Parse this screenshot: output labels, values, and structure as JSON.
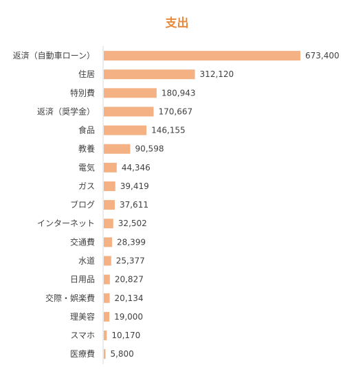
{
  "chart_data": {
    "type": "bar",
    "orientation": "horizontal",
    "title": "支出",
    "categories": [
      "返済（自動車ローン）",
      "住居",
      "特別費",
      "返済（奨学金）",
      "食品",
      "教養",
      "電気",
      "ガス",
      "ブログ",
      "インターネット",
      "交通費",
      "水道",
      "日用品",
      "交際・娯楽費",
      "理美容",
      "スマホ",
      "医療費"
    ],
    "values": [
      673400,
      312120,
      180943,
      170667,
      146155,
      90598,
      44346,
      39419,
      37611,
      32502,
      28399,
      25377,
      20827,
      20134,
      19000,
      10170,
      5800
    ],
    "value_labels": [
      "673,400",
      "312,120",
      "180,943",
      "170,667",
      "146,155",
      "90,598",
      "44,346",
      "39,419",
      "37,611",
      "32,502",
      "28,399",
      "25,377",
      "20,827",
      "20,134",
      "19,000",
      "10,170",
      "5,800"
    ],
    "xlim": [
      0,
      673400
    ],
    "grid": false,
    "legend": "none",
    "colors": {
      "bar": "#f4b183",
      "title": "#e88a3c",
      "axis": "#d9d9d9",
      "text": "#404040"
    }
  }
}
